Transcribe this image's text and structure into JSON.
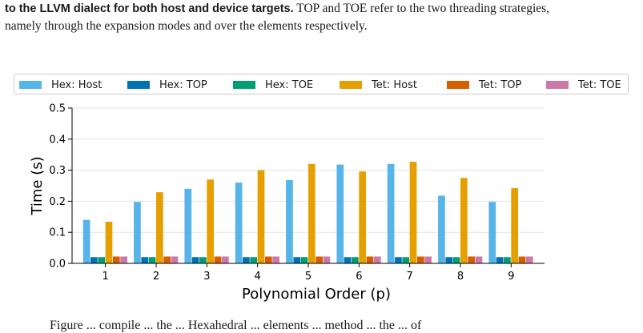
{
  "caption": {
    "line1_bold": "to the LLVM dialect for both host and device targets.",
    "line1_rest": " TOP and TOE refer to the two threading strategies,",
    "line2": "namely through the expansion modes and over the elements respectively."
  },
  "bottom_text": "Figure ... compile ... the ... Hexahedral ... elements ... method ... the ... of",
  "chart_data": {
    "type": "bar",
    "xlabel": "Polynomial Order (p)",
    "ylabel": "Time (s)",
    "ylim": [
      0,
      0.5
    ],
    "yticks": [
      "0.0",
      "0.1",
      "0.2",
      "0.3",
      "0.4",
      "0.5"
    ],
    "categories": [
      "1",
      "2",
      "3",
      "4",
      "5",
      "6",
      "7",
      "8",
      "9"
    ],
    "grid": "horizontal",
    "legend_placement": "top",
    "series": [
      {
        "name": "Hex: Host",
        "color": "#56b4e9",
        "values": [
          0.14,
          0.198,
          0.24,
          0.26,
          0.268,
          0.318,
          0.32,
          0.218,
          0.198
        ]
      },
      {
        "name": "Hex: TOP",
        "color": "#0072b2",
        "values": [
          0.02,
          0.02,
          0.02,
          0.02,
          0.02,
          0.02,
          0.02,
          0.02,
          0.02
        ]
      },
      {
        "name": "Hex: TOE",
        "color": "#009e73",
        "values": [
          0.02,
          0.02,
          0.02,
          0.02,
          0.02,
          0.02,
          0.02,
          0.02,
          0.02
        ]
      },
      {
        "name": "Tet: Host",
        "color": "#e69f00",
        "values": [
          0.134,
          0.229,
          0.27,
          0.3,
          0.32,
          0.296,
          0.327,
          0.275,
          0.242
        ]
      },
      {
        "name": "Tet: TOP",
        "color": "#d55e00",
        "values": [
          0.022,
          0.022,
          0.022,
          0.022,
          0.022,
          0.022,
          0.022,
          0.022,
          0.022
        ]
      },
      {
        "name": "Tet: TOE",
        "color": "#cc79a7",
        "values": [
          0.022,
          0.022,
          0.022,
          0.022,
          0.022,
          0.022,
          0.022,
          0.022,
          0.022
        ]
      }
    ]
  }
}
